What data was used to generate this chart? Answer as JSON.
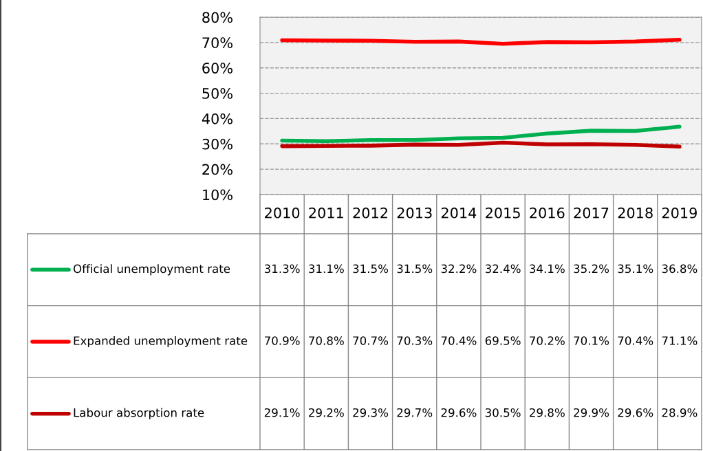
{
  "chart_data": {
    "type": "line",
    "categories": [
      "2010",
      "2011",
      "2012",
      "2013",
      "2014",
      "2015",
      "2016",
      "2017",
      "2018",
      "2019"
    ],
    "series": [
      {
        "name": "Official unemployment rate",
        "color": "#00b050",
        "values": [
          31.3,
          31.1,
          31.5,
          31.5,
          32.2,
          32.4,
          34.1,
          35.2,
          35.1,
          36.8
        ],
        "value_labels": [
          "31.3%",
          "31.1%",
          "31.5%",
          "31.5%",
          "32.2%",
          "32.4%",
          "34.1%",
          "35.2%",
          "35.1%",
          "36.8%"
        ]
      },
      {
        "name": "Expanded unemployment rate",
        "color": "#ff0000",
        "values": [
          70.9,
          70.8,
          70.7,
          70.3,
          70.4,
          69.5,
          70.2,
          70.1,
          70.4,
          71.1
        ],
        "value_labels": [
          "70.9%",
          "70.8%",
          "70.7%",
          "70.3%",
          "70.4%",
          "69.5%",
          "70.2%",
          "70.1%",
          "70.4%",
          "71.1%"
        ]
      },
      {
        "name": "Labour absorption rate",
        "color": "#c00000",
        "values": [
          29.1,
          29.2,
          29.3,
          29.7,
          29.6,
          30.5,
          29.8,
          29.9,
          29.6,
          28.9
        ],
        "value_labels": [
          "29.1%",
          "29.2%",
          "29.3%",
          "29.7%",
          "29.6%",
          "30.5%",
          "29.8%",
          "29.9%",
          "29.6%",
          "28.9%"
        ]
      }
    ],
    "ylim": [
      10,
      80
    ],
    "yticks": [
      {
        "value": 10,
        "label": "10%"
      },
      {
        "value": 20,
        "label": "20%"
      },
      {
        "value": 30,
        "label": "30%"
      },
      {
        "value": 40,
        "label": "40%"
      },
      {
        "value": 50,
        "label": "50%"
      },
      {
        "value": 60,
        "label": "60%"
      },
      {
        "value": 70,
        "label": "70%"
      },
      {
        "value": 80,
        "label": "80%"
      }
    ],
    "grid": "y",
    "legend": "bottom",
    "marker": "none",
    "line_style": "solid"
  }
}
